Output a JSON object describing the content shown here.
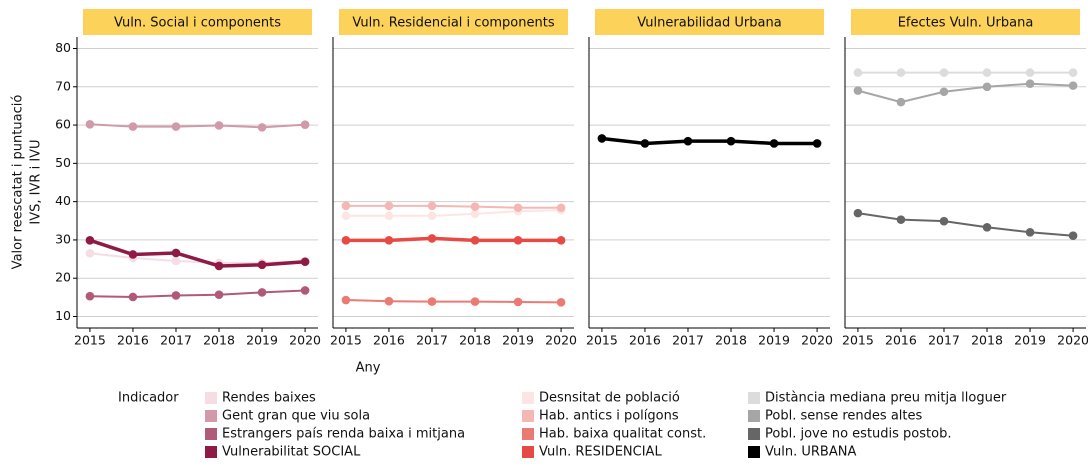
{
  "y_label": [
    "Valor reescatat i puntuació",
    "IVS, IVR i IVU"
  ],
  "x_label": "Any",
  "legend_title": "Indicador",
  "chart_data": [
    {
      "type": "line",
      "title": "Vuln. Social i components",
      "x": [
        2015,
        2016,
        2017,
        2018,
        2019,
        2020
      ],
      "xlim": [
        2014.7,
        2020.3
      ],
      "xticks": [
        2015,
        2016,
        2017,
        2018,
        2019,
        2020
      ],
      "ylim": [
        7,
        83
      ],
      "yticks": [
        10,
        20,
        30,
        40,
        50,
        60,
        70,
        80
      ],
      "grid": true,
      "series": [
        {
          "name": "Rendes baixes",
          "color": "#f5dde3",
          "linewidth": 2,
          "values": [
            26.5,
            25.3,
            24.5,
            24,
            24,
            24.5
          ]
        },
        {
          "name": "Gent gran que viu sola",
          "color": "#d29aa9",
          "linewidth": 2,
          "values": [
            60.2,
            59.6,
            59.6,
            59.9,
            59.4,
            60.1
          ]
        },
        {
          "name": "Estrangers país renda baixa i mitjana",
          "color": "#b05a78",
          "linewidth": 2,
          "values": [
            15.3,
            15.1,
            15.5,
            15.7,
            16.3,
            16.8
          ]
        },
        {
          "name": "Vulnerabilitat SOCIAL",
          "color": "#8e1a45",
          "linewidth": 3.5,
          "values": [
            29.9,
            26.2,
            26.6,
            23.2,
            23.5,
            24.3
          ]
        }
      ]
    },
    {
      "type": "line",
      "title": "Vuln. Residencial i components",
      "x": [
        2015,
        2016,
        2017,
        2018,
        2019,
        2020
      ],
      "xlim": [
        2014.7,
        2020.3
      ],
      "xticks": [
        2015,
        2016,
        2017,
        2018,
        2019,
        2020
      ],
      "ylim": [
        7,
        83
      ],
      "yticks": [
        10,
        20,
        30,
        40,
        50,
        60,
        70,
        80
      ],
      "grid": true,
      "series": [
        {
          "name": "Desnsitat de població",
          "color": "#fde5e3",
          "linewidth": 2,
          "values": [
            36.3,
            36.3,
            36.3,
            36.8,
            37.5,
            37.8
          ]
        },
        {
          "name": "Hab. antics i polígons",
          "color": "#f5b7b3",
          "linewidth": 2,
          "values": [
            38.9,
            38.9,
            38.9,
            38.7,
            38.4,
            38.4
          ]
        },
        {
          "name": "Hab. baixa qualitat const.",
          "color": "#ec7a74",
          "linewidth": 2,
          "values": [
            14.3,
            14,
            13.9,
            13.9,
            13.8,
            13.7
          ]
        },
        {
          "name": "Vuln. RESIDENCIAL",
          "color": "#e74a44",
          "linewidth": 3.5,
          "values": [
            29.9,
            29.9,
            30.4,
            29.9,
            29.9,
            29.9
          ]
        }
      ]
    },
    {
      "type": "line",
      "title": "Vulnerabilidad Urbana",
      "x": [
        2015,
        2016,
        2017,
        2018,
        2019,
        2020
      ],
      "xlim": [
        2014.7,
        2020.3
      ],
      "xticks": [
        2015,
        2016,
        2017,
        2018,
        2019,
        2020
      ],
      "ylim": [
        7,
        83
      ],
      "yticks": [
        10,
        20,
        30,
        40,
        50,
        60,
        70,
        80
      ],
      "grid": true,
      "series": [
        {
          "name": "Vuln. URBANA",
          "color": "#000000",
          "linewidth": 3.5,
          "values": [
            56.5,
            55.2,
            55.8,
            55.8,
            55.2,
            55.2
          ]
        }
      ]
    },
    {
      "type": "line",
      "title": "Efectes Vuln. Urbana",
      "x": [
        2015,
        2016,
        2017,
        2018,
        2019,
        2020
      ],
      "xlim": [
        2014.7,
        2020.3
      ],
      "xticks": [
        2015,
        2016,
        2017,
        2018,
        2019,
        2020
      ],
      "ylim": [
        7,
        83
      ],
      "yticks": [
        10,
        20,
        30,
        40,
        50,
        60,
        70,
        80
      ],
      "grid": true,
      "series": [
        {
          "name": "Distància mediana preu mitja lloguer",
          "color": "#dcdcdc",
          "linewidth": 2,
          "values": [
            73.7,
            73.7,
            73.7,
            73.7,
            73.7,
            73.7
          ]
        },
        {
          "name": "Pobl. sense rendes altes",
          "color": "#a6a6a6",
          "linewidth": 2,
          "values": [
            69,
            66,
            68.7,
            70,
            70.8,
            70.3
          ]
        },
        {
          "name": "Pobl. jove no estudis postob.",
          "color": "#666666",
          "linewidth": 2,
          "values": [
            37,
            35.3,
            34.9,
            33.3,
            32,
            31.1
          ]
        }
      ]
    }
  ]
}
